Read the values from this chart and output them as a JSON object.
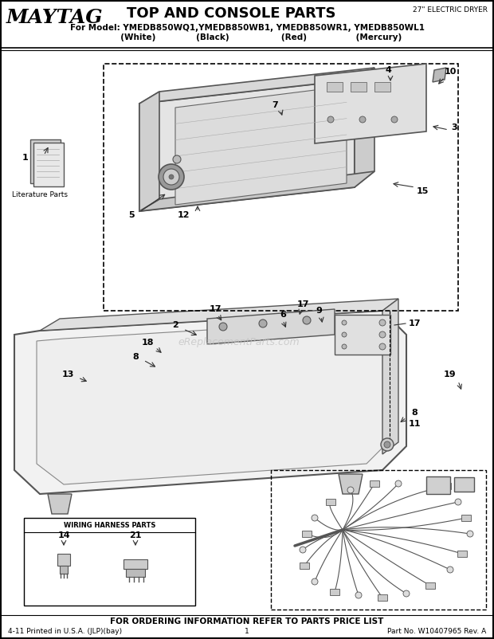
{
  "title": "TOP AND CONSOLE PARTS",
  "subtitle_right": "27\" ELECTRIC DRYER",
  "brand": "MAYTAG",
  "model_line1": "For Model: YMEDB850WQ1,YMEDB850WB1, YMEDB850WR1, YMEDB850WL1",
  "model_line2": "           (White)         (Black)              (Red)             (Mercury)",
  "footer_center": "FOR ORDERING INFORMATION REFER TO PARTS PRICE LIST",
  "footer_left": "4-11 Printed in U.S.A. (JLP)(bay)",
  "footer_mid": "1",
  "footer_right": "Part No. W10407965 Rev. A",
  "watermark": "eReplacementParts.com",
  "bg_color": "#ffffff",
  "line_color": "#333333",
  "light_gray": "#e8e8e8",
  "mid_gray": "#bbbbbb",
  "dark_gray": "#555555",
  "fig_w": 6.2,
  "fig_h": 8.02,
  "dpi": 100
}
